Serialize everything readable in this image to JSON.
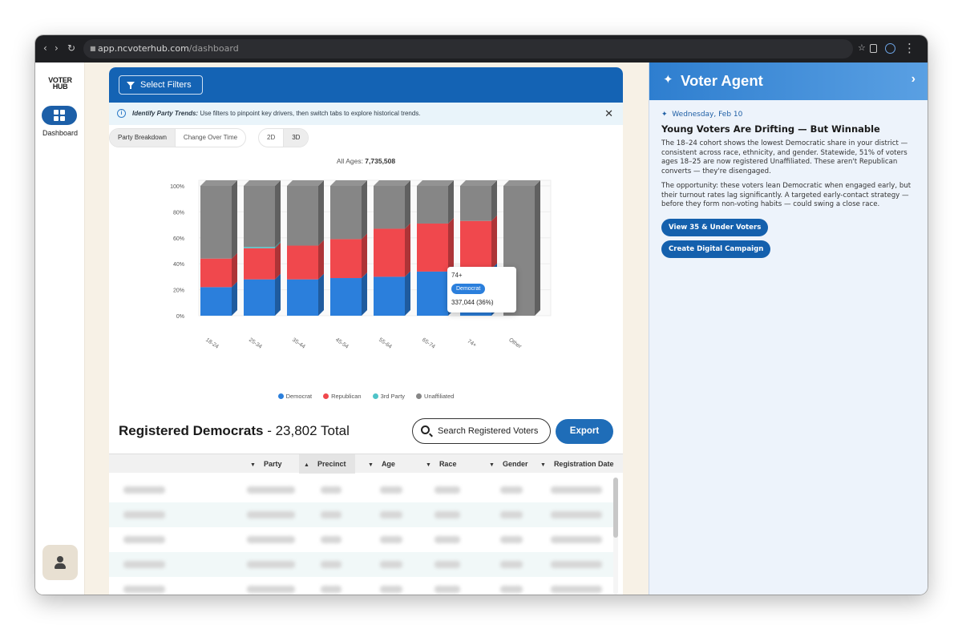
{
  "browser": {
    "url_host": "app.ncvoterhub.com",
    "url_path": "/dashboard",
    "nav_back": "‹",
    "nav_forward": "›",
    "nav_reload": "↻",
    "star": "☆",
    "menu": "⋮"
  },
  "sidebar": {
    "logo_line1": "VOTER",
    "logo_line2": "HUB",
    "dashboard_label": "Dashboard"
  },
  "header": {
    "select_filters": "Select Filters"
  },
  "info_bar": {
    "bold": "Identify Party Trends:",
    "text": " Use filters to pinpoint key drivers, then switch tabs to explore historical trends.",
    "close": "✕"
  },
  "tabs": [
    {
      "label": "Party Breakdown",
      "active": true
    },
    {
      "label": "Change Over Time",
      "active": false
    }
  ],
  "view_modes": [
    {
      "label": "2D",
      "active": false
    },
    {
      "label": "3D",
      "active": true
    }
  ],
  "chart_caption": {
    "label": "All Ages: ",
    "value": "7,735,508"
  },
  "tooltip": {
    "category": "74+",
    "series": "Democrat",
    "value": "337,044 (36%)"
  },
  "chart_data": {
    "type": "bar",
    "stacked": true,
    "percent": true,
    "categories": [
      "18-24",
      "25-34",
      "35-44",
      "45-54",
      "55-64",
      "65-74",
      "74+",
      "Other"
    ],
    "series": [
      {
        "name": "Democrat",
        "color": "#2b7fdc",
        "values": [
          22,
          28,
          28,
          29,
          30,
          34,
          36,
          0
        ]
      },
      {
        "name": "Republican",
        "color": "#f0484d",
        "values": [
          22,
          24,
          26,
          30,
          37,
          37,
          37,
          0
        ]
      },
      {
        "name": "3rd Party",
        "color": "#4fc3c8",
        "values": [
          0,
          1,
          0,
          0,
          0,
          0,
          0,
          0
        ]
      },
      {
        "name": "Unaffiliated",
        "color": "#868686",
        "values": [
          56,
          47,
          46,
          41,
          33,
          29,
          27,
          100
        ]
      }
    ],
    "yticks": [
      "0%",
      "20%",
      "40%",
      "60%",
      "80%",
      "100%"
    ],
    "ylim": [
      0,
      100
    ],
    "legend": "bottom",
    "grid": true
  },
  "registered": {
    "title": "Registered Democrats",
    "total": " - 23,802 Total"
  },
  "search": {
    "placeholder": "Search Registered Voters"
  },
  "export_label": "Export",
  "table": {
    "columns": [
      {
        "label": "Party",
        "arrow": "▼"
      },
      {
        "label": "Precinct",
        "arrow": "▲"
      },
      {
        "label": "Age",
        "arrow": "▼"
      },
      {
        "label": "Race",
        "arrow": "▼"
      },
      {
        "label": "Gender",
        "arrow": "▼"
      },
      {
        "label": "Registration Date",
        "arrow": "▼"
      }
    ]
  },
  "agent": {
    "title": "Voter Agent",
    "spark": "✦",
    "chevron": "›",
    "date_icon": "✦",
    "date": "Wednesday, Feb 10",
    "headline": "Young Voters Are Drifting — But Winnable",
    "para1": "The 18–24 cohort shows the lowest Democratic share in your district — consistent across race, ethnicity, and gender. Statewide, 51% of voters ages 18–25 are now registered Unaffiliated. These aren't Republican converts — they're disengaged.",
    "para2": "The opportunity: these voters lean Democratic when engaged early, but their turnout rates lag significantly. A targeted early-contact strategy — before they form non-voting habits — could swing a close race.",
    "btn1": "View 35 & Under Voters",
    "btn2": "Create Digital Campaign"
  }
}
